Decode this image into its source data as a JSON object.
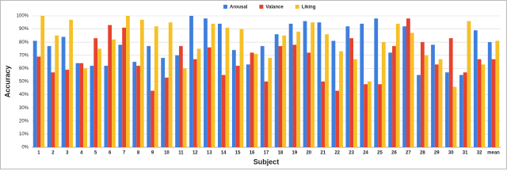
{
  "chart_data": {
    "type": "bar",
    "y_label": "Accuracy",
    "x_label": "Subject",
    "categories": [
      "1",
      "2",
      "3",
      "4",
      "5",
      "6",
      "7",
      "8",
      "9",
      "10",
      "11",
      "12",
      "13",
      "14",
      "15",
      "16",
      "17",
      "18",
      "19",
      "20",
      "21",
      "22",
      "23",
      "24",
      "25",
      "26",
      "27",
      "28",
      "29",
      "30",
      "31",
      "32",
      "mean"
    ],
    "series": [
      {
        "name": "Arousal",
        "color": "#3f7fdc",
        "values": [
          81,
          77,
          84,
          64,
          62,
          62,
          78,
          65,
          77,
          68,
          70,
          100,
          98,
          94,
          74,
          63,
          77,
          86,
          94,
          96,
          95,
          81,
          92,
          94,
          98,
          72,
          92,
          55,
          78,
          57,
          55,
          89,
          80
        ]
      },
      {
        "name": "Valance",
        "color": "#e5432f",
        "values": [
          69,
          57,
          59,
          64,
          83,
          93,
          91,
          62,
          43,
          53,
          77,
          67,
          76,
          55,
          62,
          72,
          50,
          77,
          78,
          72,
          50,
          43,
          83,
          48,
          48,
          77,
          98,
          80,
          63,
          83,
          57,
          67,
          67
        ]
      },
      {
        "name": "Liking",
        "color": "#f6c026",
        "values": [
          100,
          85,
          97,
          60,
          75,
          82,
          100,
          97,
          92,
          95,
          60,
          75,
          94,
          91,
          90,
          71,
          68,
          85,
          88,
          95,
          86,
          73,
          67,
          50,
          80,
          94,
          87,
          70,
          67,
          46,
          96,
          63,
          81
        ]
      }
    ],
    "ylim": [
      0,
      100
    ],
    "yticks": [
      {
        "value": 0,
        "label": "0%"
      },
      {
        "value": 10,
        "label": "10%"
      },
      {
        "value": 20,
        "label": "20%"
      },
      {
        "value": 30,
        "label": "30%"
      },
      {
        "value": 40,
        "label": "40%"
      },
      {
        "value": 50,
        "label": "50%"
      },
      {
        "value": 60,
        "label": "60%"
      },
      {
        "value": 70,
        "label": "70%"
      },
      {
        "value": 80,
        "label": "80%"
      },
      {
        "value": 90,
        "label": "90%"
      },
      {
        "value": 100,
        "label": "100%"
      }
    ],
    "grid": true
  }
}
